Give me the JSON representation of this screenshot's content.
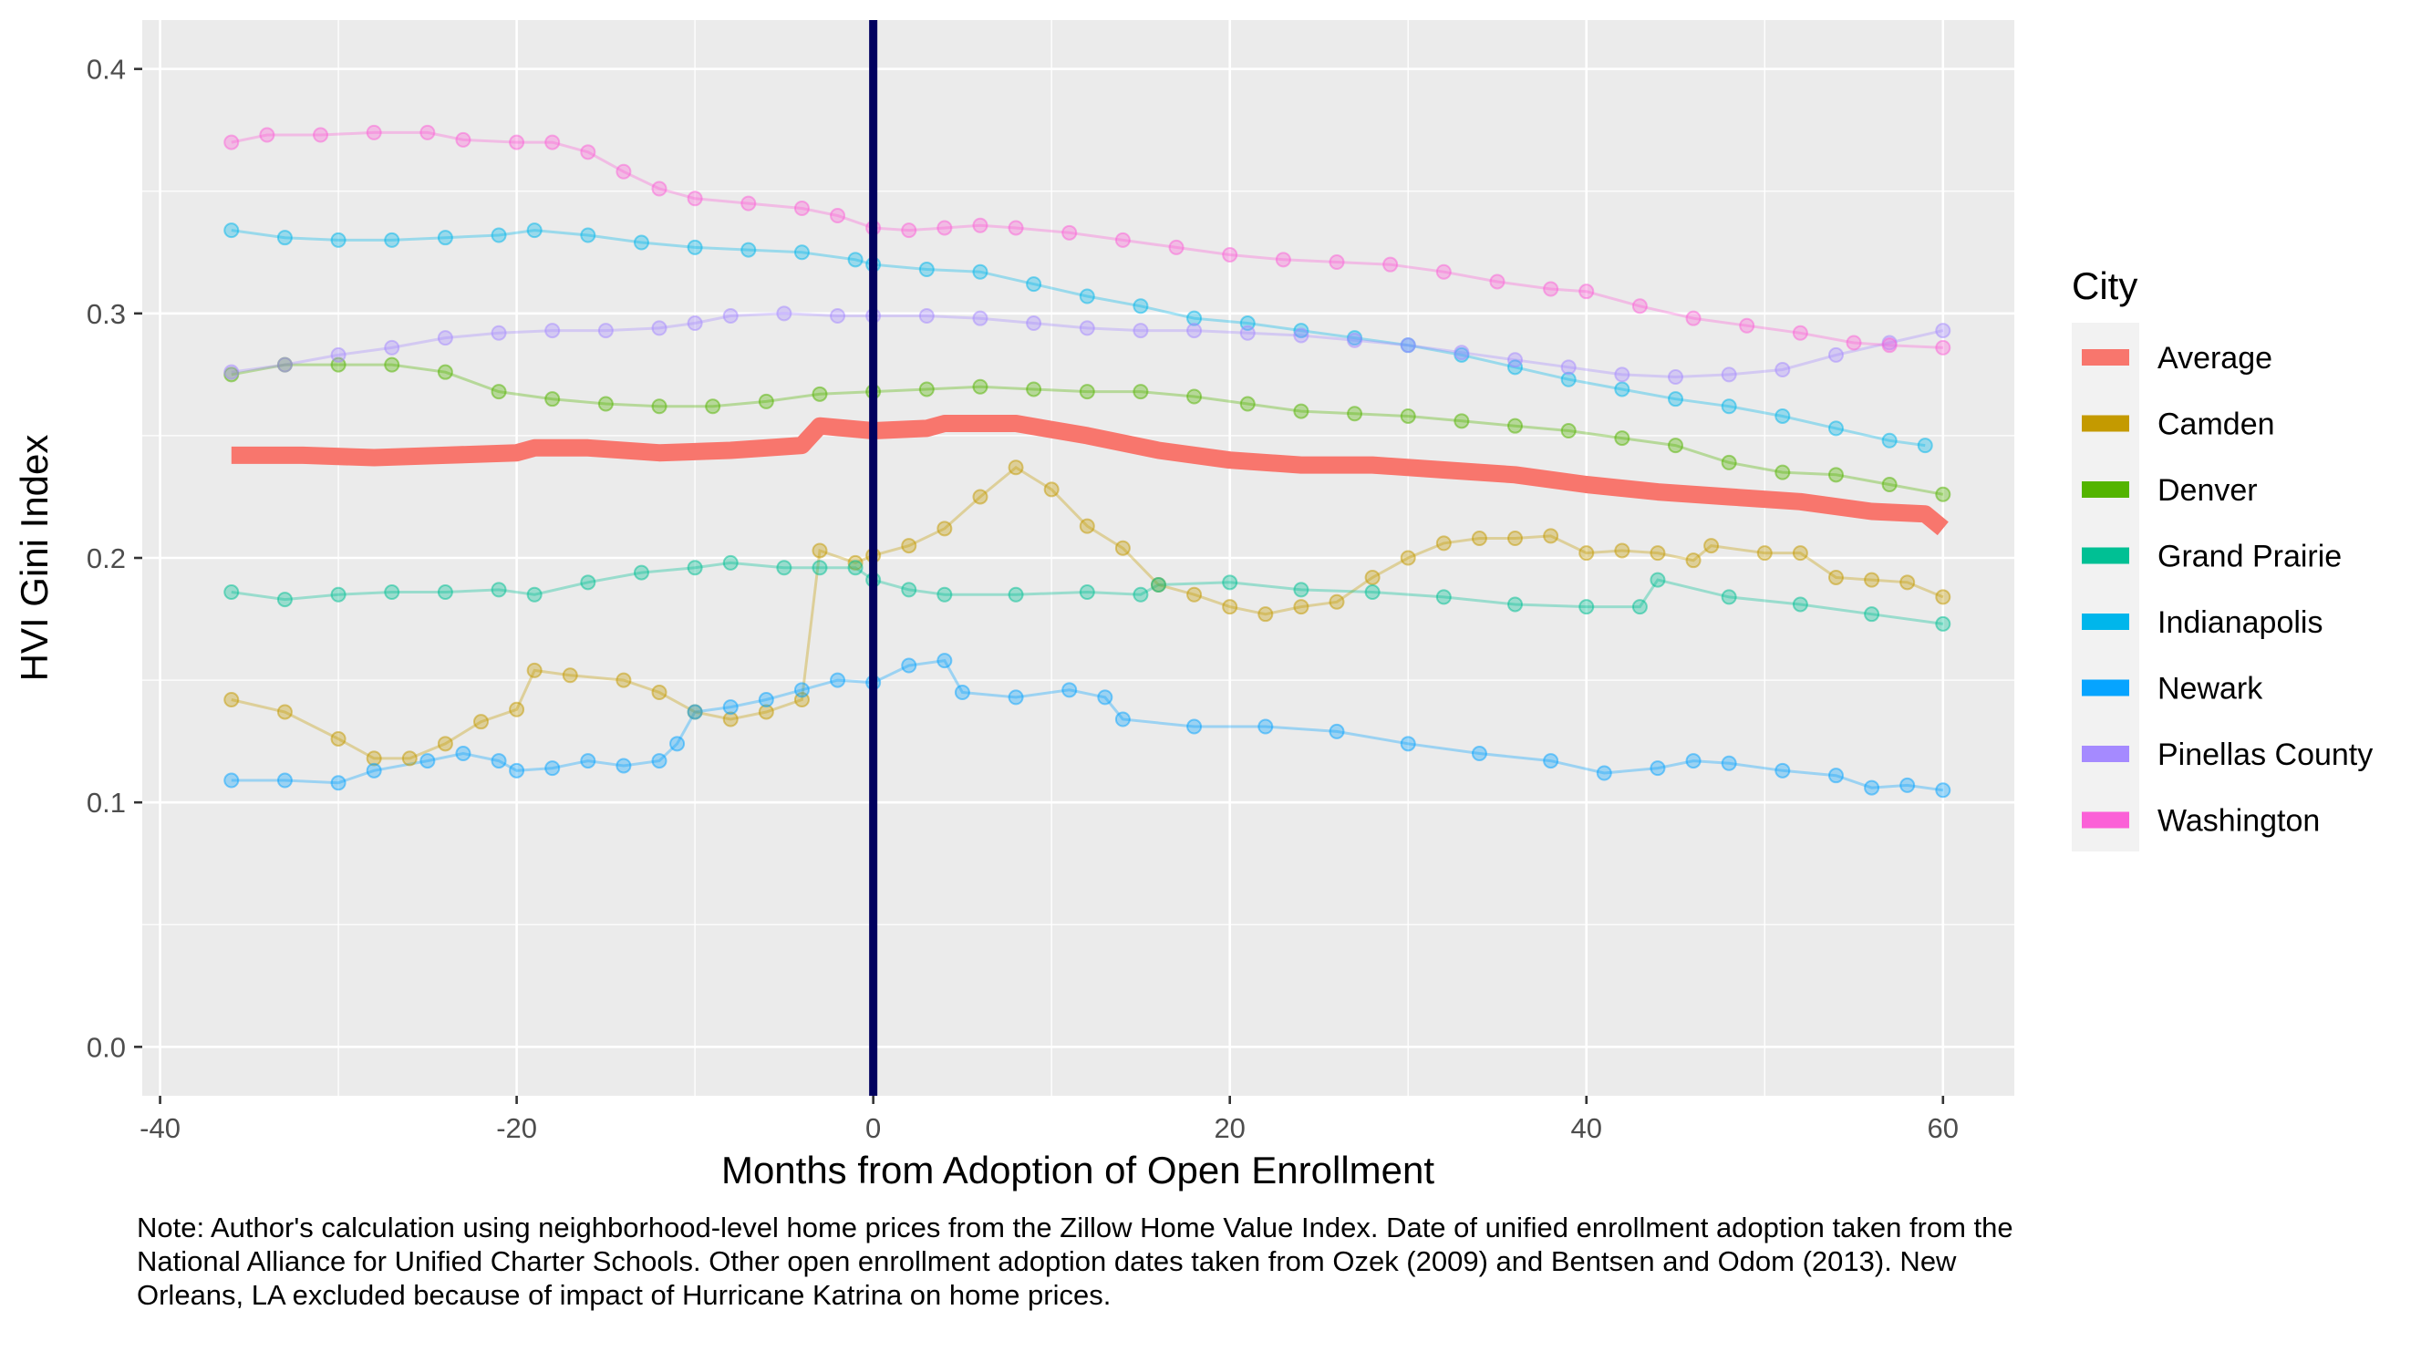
{
  "chart_data": {
    "type": "line",
    "title": "",
    "xlabel": "Months from Adoption of Open Enrollment",
    "ylabel": "HVI Gini Index",
    "xlim": [
      -41,
      64
    ],
    "ylim": [
      -0.02,
      0.42
    ],
    "x_ticks": [
      -40,
      -20,
      0,
      20,
      40,
      60
    ],
    "x_tick_labels": [
      "-40",
      "-20",
      "0",
      "20",
      "40",
      "60"
    ],
    "y_ticks": [
      0.0,
      0.1,
      0.2,
      0.3,
      0.4
    ],
    "y_tick_labels": [
      "0.0",
      "0.1",
      "0.2",
      "0.3",
      "0.4"
    ],
    "grid": true,
    "vline_x": 0,
    "vline_color": "#00005f",
    "legend": {
      "title": "City",
      "position": "right"
    },
    "note": "Note: Author's calculation using neighborhood-level home prices from the Zillow Home Value Index.  Date of unified enrollment adoption taken from the National Alliance for Unified Charter Schools. Other open enrollment adoption dates taken from Ozek (2009) and Bentsen and Odom (2013). New Orleans, LA excluded because of impact of Hurricane Katrina on home prices.",
    "series": [
      {
        "name": "Average",
        "color": "#F8766D",
        "emphasis": true,
        "points": [
          [
            -36,
            0.242
          ],
          [
            -32,
            0.242
          ],
          [
            -28,
            0.241
          ],
          [
            -24,
            0.242
          ],
          [
            -20,
            0.243
          ],
          [
            -19,
            0.245
          ],
          [
            -16,
            0.245
          ],
          [
            -12,
            0.243
          ],
          [
            -8,
            0.244
          ],
          [
            -4,
            0.246
          ],
          [
            -3,
            0.254
          ],
          [
            0,
            0.252
          ],
          [
            3,
            0.253
          ],
          [
            4,
            0.255
          ],
          [
            8,
            0.255
          ],
          [
            12,
            0.25
          ],
          [
            16,
            0.244
          ],
          [
            20,
            0.24
          ],
          [
            24,
            0.238
          ],
          [
            28,
            0.238
          ],
          [
            32,
            0.236
          ],
          [
            36,
            0.234
          ],
          [
            40,
            0.23
          ],
          [
            44,
            0.227
          ],
          [
            48,
            0.225
          ],
          [
            52,
            0.223
          ],
          [
            56,
            0.219
          ],
          [
            59,
            0.218
          ],
          [
            60,
            0.212
          ]
        ]
      },
      {
        "name": "Camden",
        "color": "#C49A00",
        "points": [
          [
            -36,
            0.142
          ],
          [
            -33,
            0.137
          ],
          [
            -30,
            0.126
          ],
          [
            -28,
            0.118
          ],
          [
            -26,
            0.118
          ],
          [
            -24,
            0.124
          ],
          [
            -22,
            0.133
          ],
          [
            -20,
            0.138
          ],
          [
            -19,
            0.154
          ],
          [
            -17,
            0.152
          ],
          [
            -14,
            0.15
          ],
          [
            -12,
            0.145
          ],
          [
            -10,
            0.137
          ],
          [
            -8,
            0.134
          ],
          [
            -6,
            0.137
          ],
          [
            -4,
            0.142
          ],
          [
            -3,
            0.203
          ],
          [
            -1,
            0.198
          ],
          [
            0,
            0.201
          ],
          [
            2,
            0.205
          ],
          [
            4,
            0.212
          ],
          [
            6,
            0.225
          ],
          [
            8,
            0.237
          ],
          [
            10,
            0.228
          ],
          [
            12,
            0.213
          ],
          [
            14,
            0.204
          ],
          [
            16,
            0.189
          ],
          [
            18,
            0.185
          ],
          [
            20,
            0.18
          ],
          [
            22,
            0.177
          ],
          [
            24,
            0.18
          ],
          [
            26,
            0.182
          ],
          [
            28,
            0.192
          ],
          [
            30,
            0.2
          ],
          [
            32,
            0.206
          ],
          [
            34,
            0.208
          ],
          [
            36,
            0.208
          ],
          [
            38,
            0.209
          ],
          [
            40,
            0.202
          ],
          [
            42,
            0.203
          ],
          [
            44,
            0.202
          ],
          [
            46,
            0.199
          ],
          [
            47,
            0.205
          ],
          [
            50,
            0.202
          ],
          [
            52,
            0.202
          ],
          [
            54,
            0.192
          ],
          [
            56,
            0.191
          ],
          [
            58,
            0.19
          ],
          [
            60,
            0.184
          ]
        ]
      },
      {
        "name": "Denver",
        "color": "#53B400",
        "points": [
          [
            -36,
            0.275
          ],
          [
            -33,
            0.279
          ],
          [
            -30,
            0.279
          ],
          [
            -27,
            0.279
          ],
          [
            -24,
            0.276
          ],
          [
            -21,
            0.268
          ],
          [
            -18,
            0.265
          ],
          [
            -15,
            0.263
          ],
          [
            -12,
            0.262
          ],
          [
            -9,
            0.262
          ],
          [
            -6,
            0.264
          ],
          [
            -3,
            0.267
          ],
          [
            0,
            0.268
          ],
          [
            3,
            0.269
          ],
          [
            6,
            0.27
          ],
          [
            9,
            0.269
          ],
          [
            12,
            0.268
          ],
          [
            15,
            0.268
          ],
          [
            18,
            0.266
          ],
          [
            21,
            0.263
          ],
          [
            24,
            0.26
          ],
          [
            27,
            0.259
          ],
          [
            30,
            0.258
          ],
          [
            33,
            0.256
          ],
          [
            36,
            0.254
          ],
          [
            39,
            0.252
          ],
          [
            42,
            0.249
          ],
          [
            45,
            0.246
          ],
          [
            48,
            0.239
          ],
          [
            51,
            0.235
          ],
          [
            54,
            0.234
          ],
          [
            57,
            0.23
          ],
          [
            60,
            0.226
          ]
        ]
      },
      {
        "name": "Grand Prairie",
        "color": "#00C094",
        "points": [
          [
            -36,
            0.186
          ],
          [
            -33,
            0.183
          ],
          [
            -30,
            0.185
          ],
          [
            -27,
            0.186
          ],
          [
            -24,
            0.186
          ],
          [
            -21,
            0.187
          ],
          [
            -19,
            0.185
          ],
          [
            -16,
            0.19
          ],
          [
            -13,
            0.194
          ],
          [
            -10,
            0.196
          ],
          [
            -8,
            0.198
          ],
          [
            -5,
            0.196
          ],
          [
            -3,
            0.196
          ],
          [
            -1,
            0.196
          ],
          [
            0,
            0.191
          ],
          [
            2,
            0.187
          ],
          [
            4,
            0.185
          ],
          [
            8,
            0.185
          ],
          [
            12,
            0.186
          ],
          [
            15,
            0.185
          ],
          [
            16,
            0.189
          ],
          [
            20,
            0.19
          ],
          [
            24,
            0.187
          ],
          [
            28,
            0.186
          ],
          [
            32,
            0.184
          ],
          [
            36,
            0.181
          ],
          [
            40,
            0.18
          ],
          [
            43,
            0.18
          ],
          [
            44,
            0.191
          ],
          [
            48,
            0.184
          ],
          [
            52,
            0.181
          ],
          [
            56,
            0.177
          ],
          [
            60,
            0.173
          ]
        ]
      },
      {
        "name": "Indianapolis",
        "color": "#00B6EB",
        "points": [
          [
            -36,
            0.334
          ],
          [
            -33,
            0.331
          ],
          [
            -30,
            0.33
          ],
          [
            -27,
            0.33
          ],
          [
            -24,
            0.331
          ],
          [
            -21,
            0.332
          ],
          [
            -19,
            0.334
          ],
          [
            -16,
            0.332
          ],
          [
            -13,
            0.329
          ],
          [
            -10,
            0.327
          ],
          [
            -7,
            0.326
          ],
          [
            -4,
            0.325
          ],
          [
            -1,
            0.322
          ],
          [
            0,
            0.32
          ],
          [
            3,
            0.318
          ],
          [
            6,
            0.317
          ],
          [
            9,
            0.312
          ],
          [
            12,
            0.307
          ],
          [
            15,
            0.303
          ],
          [
            18,
            0.298
          ],
          [
            21,
            0.296
          ],
          [
            24,
            0.293
          ],
          [
            27,
            0.29
          ],
          [
            30,
            0.287
          ],
          [
            33,
            0.283
          ],
          [
            36,
            0.278
          ],
          [
            39,
            0.273
          ],
          [
            42,
            0.269
          ],
          [
            45,
            0.265
          ],
          [
            48,
            0.262
          ],
          [
            51,
            0.258
          ],
          [
            54,
            0.253
          ],
          [
            57,
            0.248
          ],
          [
            59,
            0.246
          ]
        ]
      },
      {
        "name": "Newark",
        "color": "#06A4FF",
        "points": [
          [
            -36,
            0.109
          ],
          [
            -33,
            0.109
          ],
          [
            -30,
            0.108
          ],
          [
            -28,
            0.113
          ],
          [
            -25,
            0.117
          ],
          [
            -23,
            0.12
          ],
          [
            -21,
            0.117
          ],
          [
            -20,
            0.113
          ],
          [
            -18,
            0.114
          ],
          [
            -16,
            0.117
          ],
          [
            -14,
            0.115
          ],
          [
            -12,
            0.117
          ],
          [
            -11,
            0.124
          ],
          [
            -10,
            0.137
          ],
          [
            -8,
            0.139
          ],
          [
            -6,
            0.142
          ],
          [
            -4,
            0.146
          ],
          [
            -2,
            0.15
          ],
          [
            0,
            0.149
          ],
          [
            2,
            0.156
          ],
          [
            4,
            0.158
          ],
          [
            5,
            0.145
          ],
          [
            8,
            0.143
          ],
          [
            11,
            0.146
          ],
          [
            13,
            0.143
          ],
          [
            14,
            0.134
          ],
          [
            18,
            0.131
          ],
          [
            22,
            0.131
          ],
          [
            26,
            0.129
          ],
          [
            30,
            0.124
          ],
          [
            34,
            0.12
          ],
          [
            38,
            0.117
          ],
          [
            41,
            0.112
          ],
          [
            44,
            0.114
          ],
          [
            46,
            0.117
          ],
          [
            48,
            0.116
          ],
          [
            51,
            0.113
          ],
          [
            54,
            0.111
          ],
          [
            56,
            0.106
          ],
          [
            58,
            0.107
          ],
          [
            60,
            0.105
          ]
        ]
      },
      {
        "name": "Pinellas County",
        "color": "#A58AFF",
        "points": [
          [
            -36,
            0.276
          ],
          [
            -33,
            0.279
          ],
          [
            -30,
            0.283
          ],
          [
            -27,
            0.286
          ],
          [
            -24,
            0.29
          ],
          [
            -21,
            0.292
          ],
          [
            -18,
            0.293
          ],
          [
            -15,
            0.293
          ],
          [
            -12,
            0.294
          ],
          [
            -10,
            0.296
          ],
          [
            -8,
            0.299
          ],
          [
            -5,
            0.3
          ],
          [
            -2,
            0.299
          ],
          [
            0,
            0.299
          ],
          [
            3,
            0.299
          ],
          [
            6,
            0.298
          ],
          [
            9,
            0.296
          ],
          [
            12,
            0.294
          ],
          [
            15,
            0.293
          ],
          [
            18,
            0.293
          ],
          [
            21,
            0.292
          ],
          [
            24,
            0.291
          ],
          [
            27,
            0.289
          ],
          [
            30,
            0.287
          ],
          [
            33,
            0.284
          ],
          [
            36,
            0.281
          ],
          [
            39,
            0.278
          ],
          [
            42,
            0.275
          ],
          [
            45,
            0.274
          ],
          [
            48,
            0.275
          ],
          [
            51,
            0.277
          ],
          [
            54,
            0.283
          ],
          [
            57,
            0.288
          ],
          [
            60,
            0.293
          ]
        ]
      },
      {
        "name": "Washington",
        "color": "#FB61D7",
        "points": [
          [
            -36,
            0.37
          ],
          [
            -34,
            0.373
          ],
          [
            -31,
            0.373
          ],
          [
            -28,
            0.374
          ],
          [
            -25,
            0.374
          ],
          [
            -23,
            0.371
          ],
          [
            -20,
            0.37
          ],
          [
            -18,
            0.37
          ],
          [
            -16,
            0.366
          ],
          [
            -14,
            0.358
          ],
          [
            -12,
            0.351
          ],
          [
            -10,
            0.347
          ],
          [
            -7,
            0.345
          ],
          [
            -4,
            0.343
          ],
          [
            -2,
            0.34
          ],
          [
            0,
            0.335
          ],
          [
            2,
            0.334
          ],
          [
            4,
            0.335
          ],
          [
            6,
            0.336
          ],
          [
            8,
            0.335
          ],
          [
            11,
            0.333
          ],
          [
            14,
            0.33
          ],
          [
            17,
            0.327
          ],
          [
            20,
            0.324
          ],
          [
            23,
            0.322
          ],
          [
            26,
            0.321
          ],
          [
            29,
            0.32
          ],
          [
            32,
            0.317
          ],
          [
            35,
            0.313
          ],
          [
            38,
            0.31
          ],
          [
            40,
            0.309
          ],
          [
            43,
            0.303
          ],
          [
            46,
            0.298
          ],
          [
            49,
            0.295
          ],
          [
            52,
            0.292
          ],
          [
            55,
            0.288
          ],
          [
            57,
            0.287
          ],
          [
            60,
            0.286
          ]
        ]
      }
    ]
  }
}
